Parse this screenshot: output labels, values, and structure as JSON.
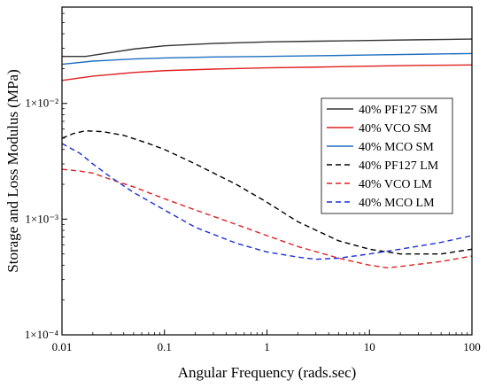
{
  "chart_data": {
    "type": "line",
    "xlabel": "Angular Frequency (rads.sec)",
    "ylabel": "Storage and Loss Modulus (MPa)",
    "xscale": "log",
    "yscale": "log",
    "xlim": [
      0.01,
      100
    ],
    "ylim": [
      0.0001,
      0.068
    ],
    "x_ticks": [
      0.01,
      0.1,
      1,
      10,
      100
    ],
    "x_tick_labels": [
      "0.01",
      "0.1",
      "1",
      "10",
      "100"
    ],
    "y_ticks": [
      0.0001,
      0.001,
      0.01
    ],
    "y_tick_labels": [
      "1×10⁻⁴",
      "1×10⁻³",
      "1×10⁻²"
    ],
    "legend_position": "center-right",
    "series": [
      {
        "name": "40% PF127 SM",
        "color": "#333333",
        "dash": "solid",
        "x": [
          0.01,
          0.017,
          0.03,
          0.05,
          0.1,
          0.3,
          1,
          3,
          10,
          30,
          100
        ],
        "y": [
          0.0255,
          0.0255,
          0.0275,
          0.0295,
          0.0315,
          0.033,
          0.034,
          0.0345,
          0.035,
          0.0355,
          0.036
        ]
      },
      {
        "name": "40% VCO SM",
        "color": "#e02020",
        "dash": "solid",
        "x": [
          0.01,
          0.02,
          0.05,
          0.1,
          0.3,
          1,
          3,
          10,
          30,
          100
        ],
        "y": [
          0.0158,
          0.0172,
          0.0185,
          0.0192,
          0.0198,
          0.0203,
          0.0206,
          0.021,
          0.0213,
          0.0215
        ]
      },
      {
        "name": "40% MCO SM",
        "color": "#1f6fbf",
        "dash": "solid",
        "x": [
          0.01,
          0.02,
          0.05,
          0.1,
          0.3,
          1,
          3,
          10,
          30,
          100
        ],
        "y": [
          0.0218,
          0.0232,
          0.0242,
          0.0247,
          0.0252,
          0.0255,
          0.0258,
          0.0262,
          0.0266,
          0.027
        ]
      },
      {
        "name": "40% PF127 LM",
        "color": "#000000",
        "dash": "dashed",
        "x": [
          0.01,
          0.013,
          0.017,
          0.025,
          0.04,
          0.07,
          0.1,
          0.2,
          0.5,
          1,
          2,
          5,
          10,
          20,
          50,
          100
        ],
        "y": [
          0.005,
          0.0055,
          0.0058,
          0.0057,
          0.0053,
          0.0045,
          0.004,
          0.003,
          0.002,
          0.0014,
          0.00095,
          0.00065,
          0.00055,
          0.0005,
          0.0005,
          0.00055
        ]
      },
      {
        "name": "40% VCO LM",
        "color": "#e02020",
        "dash": "dashed",
        "x": [
          0.01,
          0.015,
          0.02,
          0.03,
          0.05,
          0.1,
          0.2,
          0.5,
          1,
          2,
          5,
          10,
          15,
          20,
          50,
          100
        ],
        "y": [
          0.0027,
          0.0026,
          0.0025,
          0.0022,
          0.0019,
          0.0015,
          0.0012,
          0.0009,
          0.00072,
          0.00058,
          0.00046,
          0.0004,
          0.00038,
          0.00039,
          0.00043,
          0.00048
        ]
      },
      {
        "name": "40% MCO LM",
        "color": "#1a2fd6",
        "dash": "dashed",
        "x": [
          0.01,
          0.015,
          0.02,
          0.03,
          0.05,
          0.1,
          0.2,
          0.5,
          1,
          2,
          3,
          5,
          10,
          20,
          50,
          100
        ],
        "y": [
          0.0045,
          0.0037,
          0.003,
          0.0023,
          0.0017,
          0.0012,
          0.00085,
          0.00062,
          0.00052,
          0.00047,
          0.00045,
          0.00046,
          0.0005,
          0.00055,
          0.00063,
          0.00072
        ]
      }
    ]
  }
}
